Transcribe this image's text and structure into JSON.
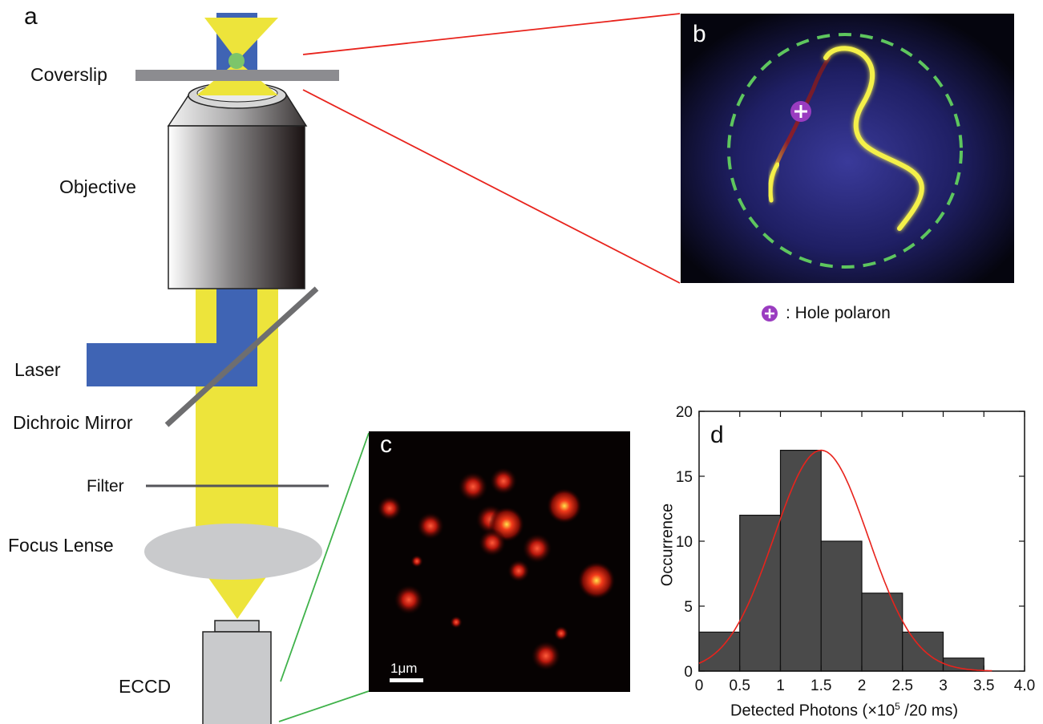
{
  "panel_a": {
    "letter": "a",
    "labels": {
      "coverslip": "Coverslip",
      "objective": "Objective",
      "laser": "Laser",
      "dichroic": "Dichroic Mirror",
      "filter": "Filter",
      "focus": "Focus Lense",
      "eccd": "ECCD"
    },
    "colors": {
      "laser": "#3f64b4",
      "emission": "#ede43b",
      "glass": "#8c8c90"
    }
  },
  "panel_b": {
    "letter": "b",
    "legend_label": ": Hole polaron",
    "legend_icon": "plus-circle-icon",
    "colors": {
      "chain": "#f4f04a",
      "hole": "#9a3cc0",
      "outline": "#5ec65e"
    }
  },
  "panel_c": {
    "letter": "c",
    "scale_bar": "1μm"
  },
  "panel_d": {
    "letter": "d",
    "chart_data": {
      "type": "bar",
      "xlabel_main": "Detected Photons (×10",
      "xlabel_sup": "5",
      "xlabel_tail": " /20 ms)",
      "ylabel": "Occurrence",
      "xlim": [
        0,
        4.0
      ],
      "ylim": [
        0,
        20
      ],
      "x_ticks": [
        "0",
        "0.5",
        "1",
        "1.5",
        "2",
        "2.5",
        "3",
        "3.5",
        "4.0"
      ],
      "y_ticks": [
        "0",
        "5",
        "10",
        "15",
        "20"
      ],
      "bins": [
        [
          0,
          0.5
        ],
        [
          0.5,
          1.0
        ],
        [
          1.0,
          1.5
        ],
        [
          1.5,
          2.0
        ],
        [
          2.0,
          2.5
        ],
        [
          2.5,
          3.0
        ],
        [
          3.0,
          3.5
        ]
      ],
      "values": [
        3,
        12,
        17,
        10,
        6,
        3,
        1
      ],
      "fit": {
        "type": "gaussian",
        "amplitude": 17,
        "mean": 1.5,
        "sigma": 0.58,
        "color": "#e8231c"
      },
      "bar_color": "#4a4a4a"
    }
  }
}
